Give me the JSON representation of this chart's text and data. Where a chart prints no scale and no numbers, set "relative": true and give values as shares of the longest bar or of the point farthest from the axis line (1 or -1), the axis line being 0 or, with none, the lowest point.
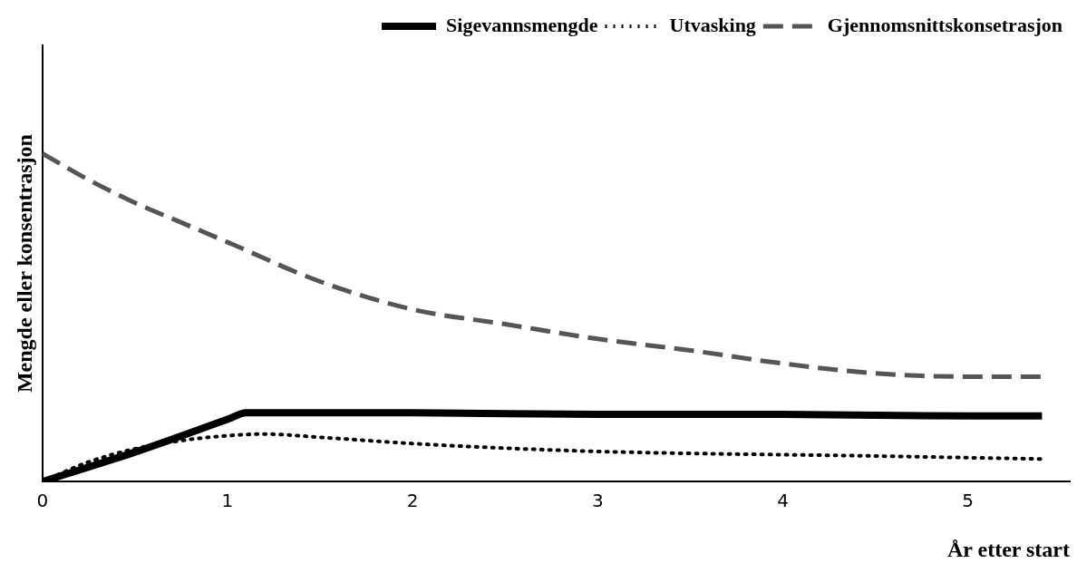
{
  "chart_data": {
    "type": "line",
    "xlabel": "År etter start",
    "ylabel": "Mengde eller konsentrasjon",
    "relative": true,
    "xlim": [
      0,
      5.55
    ],
    "xticks": [
      0,
      1,
      2,
      3,
      4,
      5
    ],
    "grid": false,
    "legend": "top right",
    "marker": "none",
    "series": [
      {
        "name": "Sigevannsmengde",
        "color": "#000000",
        "line_style": "solid",
        "x": [
          0,
          0.5,
          1,
          1.1,
          2,
          3,
          4,
          5,
          5.4
        ],
        "values": [
          0,
          0.09,
          0.19,
          0.21,
          0.21,
          0.205,
          0.205,
          0.2,
          0.2
        ]
      },
      {
        "name": "Utvasking",
        "color": "#000000",
        "line_style": "dotted",
        "x": [
          0,
          0.25,
          0.5,
          0.75,
          1,
          1.2,
          1.5,
          2,
          2.5,
          3,
          3.5,
          4,
          4.5,
          5,
          5.4
        ],
        "values": [
          0,
          0.06,
          0.1,
          0.125,
          0.14,
          0.145,
          0.135,
          0.116,
          0.102,
          0.092,
          0.086,
          0.082,
          0.078,
          0.073,
          0.069
        ]
      },
      {
        "name": "Gjennomsnittskonsetrasjon",
        "color": "#555555",
        "line_style": "dashed",
        "x": [
          0,
          0.25,
          0.5,
          0.75,
          1,
          1.5,
          2,
          2.5,
          3,
          3.5,
          4,
          4.5,
          5,
          5.4
        ],
        "values": [
          1,
          0.92,
          0.85,
          0.79,
          0.73,
          0.61,
          0.525,
          0.48,
          0.435,
          0.4,
          0.36,
          0.33,
          0.32,
          0.32
        ]
      }
    ]
  }
}
